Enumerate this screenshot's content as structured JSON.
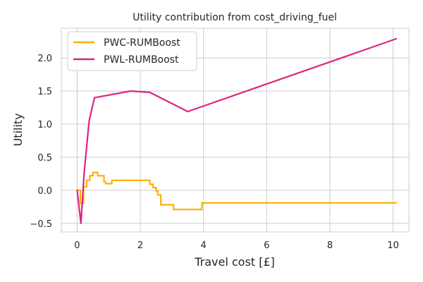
{
  "chart_data": {
    "type": "line",
    "title": "Utility contribution from cost_driving_fuel",
    "xlabel": "Travel cost [£]",
    "ylabel": "Utility",
    "xlim": [
      -0.5,
      10.5
    ],
    "ylim": [
      -0.63,
      2.45
    ],
    "xticks": [
      0,
      2,
      4,
      6,
      8,
      10
    ],
    "yticks": [
      -0.5,
      0.0,
      0.5,
      1.0,
      1.5,
      2.0
    ],
    "xtick_labels": [
      "0",
      "2",
      "4",
      "6",
      "8",
      "10"
    ],
    "ytick_labels": [
      "−0.5",
      "0.0",
      "0.5",
      "1.0",
      "1.5",
      "2.0"
    ],
    "grid": true,
    "legend_position": "top-left",
    "series": [
      {
        "name": "PWC-RUMBoost",
        "color": "#ffb000",
        "step": true,
        "points": [
          [
            0.0,
            0.0
          ],
          [
            0.1,
            -0.2
          ],
          [
            0.2,
            0.05
          ],
          [
            0.3,
            0.15
          ],
          [
            0.4,
            0.22
          ],
          [
            0.5,
            0.27
          ],
          [
            0.65,
            0.22
          ],
          [
            0.85,
            0.13
          ],
          [
            0.9,
            0.1
          ],
          [
            1.1,
            0.15
          ],
          [
            2.3,
            0.09
          ],
          [
            2.4,
            0.04
          ],
          [
            2.5,
            -0.01
          ],
          [
            2.55,
            -0.07
          ],
          [
            2.65,
            -0.22
          ],
          [
            3.05,
            -0.29
          ],
          [
            3.95,
            -0.19
          ],
          [
            10.1,
            -0.19
          ]
        ]
      },
      {
        "name": "PWL-RUMBoost",
        "color": "#dc267f",
        "step": false,
        "points": [
          [
            0.0,
            0.0
          ],
          [
            0.12,
            -0.5
          ],
          [
            0.22,
            0.25
          ],
          [
            0.38,
            1.05
          ],
          [
            0.55,
            1.4
          ],
          [
            1.7,
            1.5
          ],
          [
            2.3,
            1.48
          ],
          [
            3.5,
            1.19
          ],
          [
            10.1,
            2.29
          ]
        ]
      }
    ]
  }
}
